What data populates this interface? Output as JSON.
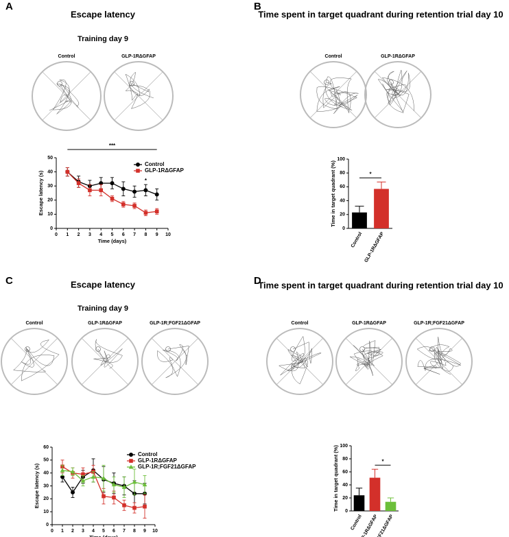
{
  "figure": {
    "panels": [
      {
        "label": "A",
        "title": "Escape latency",
        "subtitle": "Training day 9",
        "tracks": [
          "Control",
          "GLP-1RΔGFAP"
        ]
      },
      {
        "label": "B",
        "title": "Time spent in target quadrant during retention trial day 10",
        "tracks": [
          "Control",
          "GLP-1RΔGFAP"
        ]
      },
      {
        "label": "C",
        "title": "Escape latency",
        "subtitle": "Training day 9",
        "tracks": [
          "Control",
          "GLP-1RΔGFAP",
          "GLP-1R;FGF21ΔGFAP"
        ]
      },
      {
        "label": "D",
        "title": "Time spent in target quadrant during retention trial day 10",
        "tracks": [
          "Control",
          "GLP-1RΔGFAP",
          "GLP-1R;FGF21ΔGFAP"
        ]
      }
    ]
  },
  "chart_data": [
    {
      "type": "line",
      "xlabel": "Time (days)",
      "ylabel": "Escape latency (s)",
      "x": [
        1,
        2,
        3,
        4,
        5,
        6,
        7,
        8,
        9
      ],
      "xlim": [
        0,
        10
      ],
      "xticks": [
        0,
        1,
        2,
        3,
        4,
        5,
        6,
        7,
        8,
        9,
        10
      ],
      "ylim": [
        0,
        50
      ],
      "yticks": [
        0,
        10,
        20,
        30,
        40,
        50
      ],
      "series": [
        {
          "name": "Control",
          "color": "#000000",
          "marker": "circle",
          "values": [
            40,
            33,
            30,
            32,
            32,
            28,
            26,
            27,
            24
          ],
          "errors": [
            3,
            4,
            4,
            4,
            4,
            5,
            4,
            4,
            4
          ]
        },
        {
          "name": "GLP-1RΔGFAP",
          "color": "#d3302a",
          "marker": "square",
          "values": [
            40,
            32,
            27,
            27,
            21,
            17,
            16,
            11,
            12
          ],
          "errors": [
            3,
            3,
            4,
            4,
            2,
            2,
            2,
            2,
            2
          ]
        }
      ],
      "annotations": [
        "***",
        "*"
      ]
    },
    {
      "type": "bar",
      "ylabel": "Time in target quadrant (%)",
      "categories": [
        "Control",
        "GLP-1RΔGFAP"
      ],
      "values": [
        23,
        57
      ],
      "errors": [
        9,
        10
      ],
      "colors": [
        "#000000",
        "#d3302a"
      ],
      "ylim": [
        0,
        100
      ],
      "yticks": [
        0,
        20,
        40,
        60,
        80,
        100
      ],
      "annotations": [
        "*"
      ]
    },
    {
      "type": "line",
      "xlabel": "Time (days)",
      "ylabel": "Escape latency (s)",
      "x": [
        1,
        2,
        3,
        4,
        5,
        6,
        7,
        8,
        9
      ],
      "xlim": [
        0,
        10
      ],
      "xticks": [
        0,
        1,
        2,
        3,
        4,
        5,
        6,
        7,
        8,
        9,
        10
      ],
      "ylim": [
        0,
        60
      ],
      "yticks": [
        0,
        10,
        20,
        30,
        40,
        50,
        60
      ],
      "series": [
        {
          "name": "Control",
          "color": "#000000",
          "marker": "circle",
          "values": [
            37,
            25,
            37,
            42,
            35,
            32,
            30,
            24,
            24
          ],
          "errors": [
            4,
            4,
            5,
            9,
            10,
            8,
            7,
            10,
            8
          ]
        },
        {
          "name": "GLP-1RΔGFAP",
          "color": "#d3302a",
          "marker": "square",
          "values": [
            45,
            40,
            39,
            41,
            22,
            21,
            15,
            13,
            14
          ],
          "errors": [
            5,
            4,
            5,
            5,
            6,
            5,
            4,
            4,
            9
          ]
        },
        {
          "name": "GLP-1R;FGF21ΔGFAP",
          "color": "#6cbf3a",
          "marker": "triangle",
          "values": [
            42,
            41,
            34,
            37,
            36,
            31,
            29,
            33,
            31
          ],
          "errors": [
            4,
            3,
            4,
            4,
            10,
            6,
            8,
            10,
            7
          ]
        }
      ]
    },
    {
      "type": "bar",
      "ylabel": "Time in target quadrant (%)",
      "categories": [
        "Control",
        "GLP-1RΔGFAP",
        "GLP-1R;FGF21ΔGFAP"
      ],
      "values": [
        24,
        51,
        14
      ],
      "errors": [
        11,
        13,
        6
      ],
      "colors": [
        "#000000",
        "#d3302a",
        "#6cbf3a"
      ],
      "ylim": [
        0,
        100
      ],
      "yticks": [
        0,
        20,
        40,
        60,
        80,
        100
      ],
      "annotations": [
        "*"
      ]
    }
  ]
}
